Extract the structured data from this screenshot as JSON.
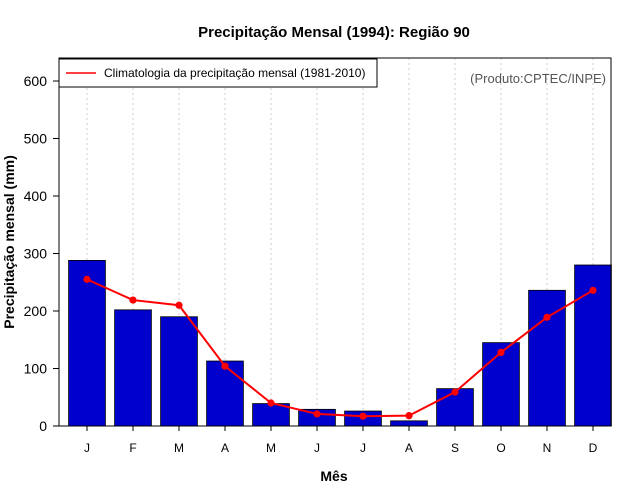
{
  "chart_data": {
    "type": "bar",
    "title": "Precipitação Mensal (1994): Região 90",
    "xlabel": "Mês",
    "ylabel": "Precipitação mensal (mm)",
    "credit": "(Produto:CPTEC/INPE)",
    "categories": [
      "J",
      "F",
      "M",
      "A",
      "M",
      "J",
      "J",
      "A",
      "S",
      "O",
      "N",
      "D"
    ],
    "ylim": [
      0,
      640
    ],
    "yticks": [
      0,
      100,
      200,
      300,
      400,
      500,
      600
    ],
    "series": [
      {
        "name": "Precipitação mensal 1994",
        "type": "bar",
        "color": "#0000CD",
        "values": [
          288,
          202,
          190,
          113,
          39,
          29,
          26,
          9,
          65,
          145,
          236,
          280
        ]
      },
      {
        "name": "Climatologia da precipitação mensal (1981-2010)",
        "type": "line",
        "color": "#FF0000",
        "values": [
          255,
          219,
          210,
          104,
          40,
          21,
          17,
          18,
          59,
          128,
          189,
          236
        ]
      }
    ],
    "legend": {
      "position": "top-left",
      "entries": [
        "Climatologia da precipitação mensal (1981-2010)"
      ]
    }
  }
}
